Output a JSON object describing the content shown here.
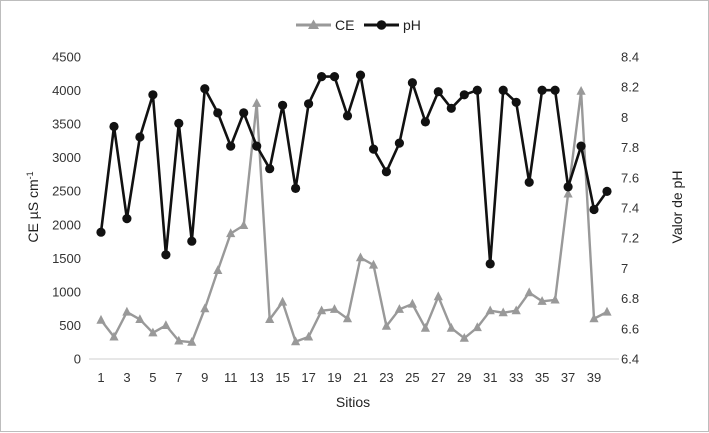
{
  "chart_data": {
    "type": "line",
    "x": [
      1,
      2,
      3,
      4,
      5,
      6,
      7,
      8,
      9,
      10,
      11,
      12,
      13,
      14,
      15,
      16,
      17,
      18,
      19,
      20,
      21,
      22,
      23,
      24,
      25,
      26,
      27,
      28,
      29,
      30,
      31,
      32,
      33,
      34,
      35,
      36,
      37,
      38,
      39,
      40
    ],
    "x_tick_labels": [
      "1",
      "3",
      "5",
      "7",
      "9",
      "11",
      "13",
      "15",
      "17",
      "19",
      "21",
      "23",
      "25",
      "27",
      "29",
      "31",
      "33",
      "35",
      "37",
      "39"
    ],
    "xlabel": "Sitios",
    "y_left": {
      "label_main": "CE µS cm",
      "label_sup": "-1",
      "ylim": [
        0,
        4500
      ],
      "tick_labels": [
        "0",
        "500",
        "1000",
        "1500",
        "2000",
        "2500",
        "3000",
        "3500",
        "4000",
        "4500"
      ]
    },
    "y_right": {
      "label": "Valor de pH",
      "ylim": [
        6.4,
        8.4
      ],
      "tick_labels": [
        "6.4",
        "6.6",
        "6.8",
        "7",
        "7.2",
        "7.4",
        "7.6",
        "7.8",
        "8",
        "8.2",
        "8.4"
      ]
    },
    "series": [
      {
        "name": "CE",
        "axis": "left",
        "color": "#999999",
        "marker": "triangle",
        "values": [
          580,
          330,
          700,
          590,
          390,
          500,
          270,
          250,
          750,
          1320,
          1870,
          1990,
          3810,
          590,
          850,
          260,
          330,
          720,
          740,
          600,
          1510,
          1400,
          490,
          740,
          820,
          460,
          930,
          460,
          310,
          470,
          720,
          690,
          720,
          990,
          860,
          880,
          2460,
          3990,
          600,
          700
        ]
      },
      {
        "name": "pH",
        "axis": "right",
        "color": "#111111",
        "marker": "circle",
        "values": [
          7.24,
          7.94,
          7.33,
          7.87,
          8.15,
          7.09,
          7.96,
          7.18,
          8.19,
          8.03,
          7.81,
          8.03,
          7.81,
          7.66,
          8.08,
          7.53,
          8.09,
          8.27,
          8.27,
          8.01,
          8.28,
          7.79,
          7.64,
          7.83,
          8.23,
          7.97,
          8.17,
          8.06,
          8.15,
          8.18,
          7.03,
          8.18,
          8.1,
          7.57,
          8.18,
          8.18,
          7.54,
          7.81,
          7.39,
          7.51
        ]
      }
    ],
    "legend_position": "top-center",
    "grid": false
  }
}
